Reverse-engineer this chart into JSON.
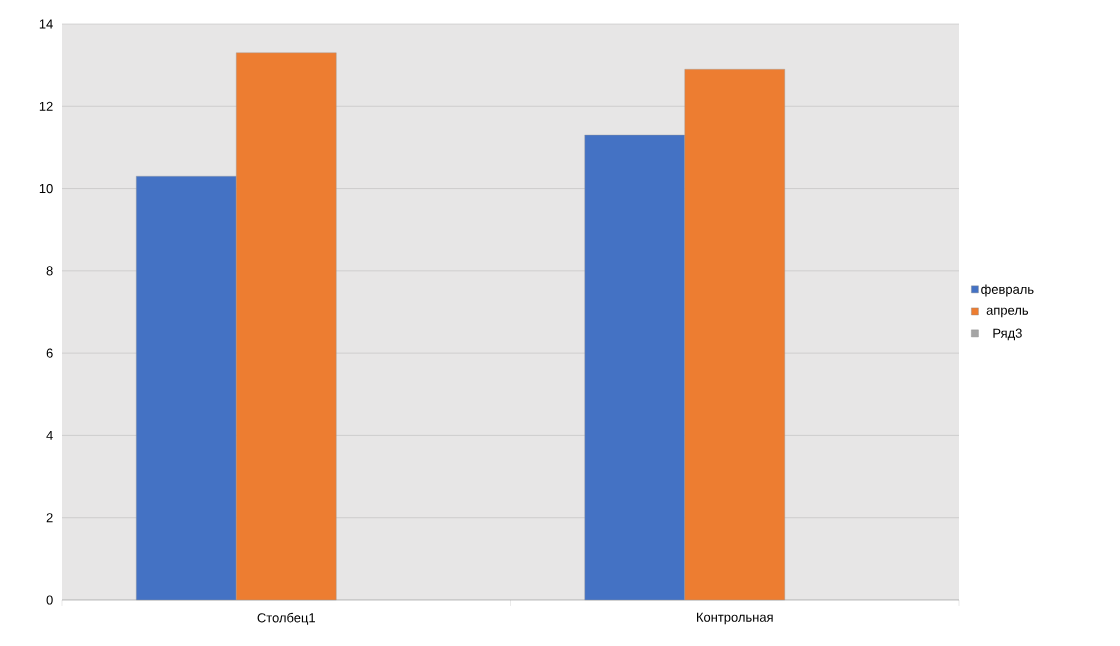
{
  "chart_data": {
    "type": "bar",
    "categories": [
      "Столбец1",
      "Контрольная"
    ],
    "series": [
      {
        "name": "февраль",
        "color": "#4472c4",
        "values": [
          10.3,
          11.3
        ]
      },
      {
        "name": "апрель",
        "color": "#ed7d31",
        "values": [
          13.3,
          12.9
        ]
      },
      {
        "name": "Ряд3",
        "color": "#a5a5a5",
        "values": [
          null,
          null
        ]
      }
    ],
    "ylim": [
      0,
      14
    ],
    "yticks": [
      0,
      2,
      4,
      6,
      8,
      10,
      12,
      14
    ],
    "grid": "y",
    "legend": "right"
  }
}
